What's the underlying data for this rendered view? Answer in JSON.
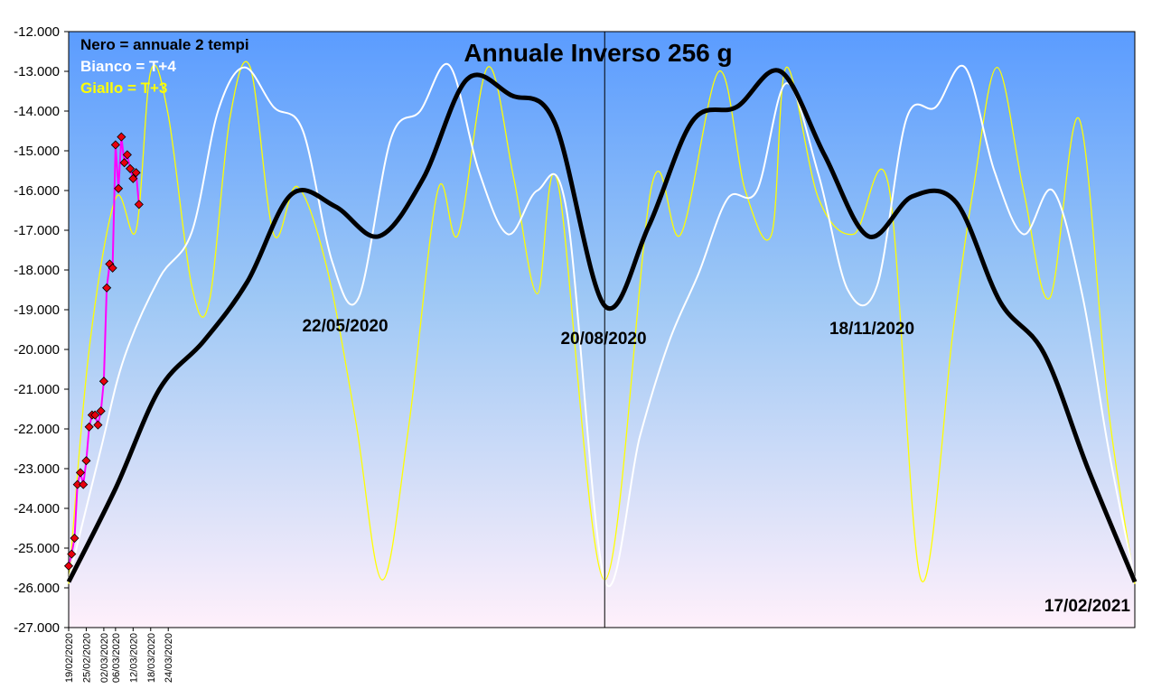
{
  "chart_data": {
    "type": "line",
    "title": "Annuale Inverso 256 g",
    "xlabel": "",
    "ylabel": "",
    "ylim": [
      -27000,
      -12000
    ],
    "yticks": [
      -12000,
      -13000,
      -14000,
      -15000,
      -16000,
      -17000,
      -18000,
      -19000,
      -20000,
      -21000,
      -22000,
      -23000,
      -24000,
      -25000,
      -26000,
      -27000
    ],
    "ytick_labels": [
      "-12.000",
      "-13.000",
      "-14.000",
      "-15.000",
      "-16.000",
      "-17.000",
      "-18.000",
      "-19.000",
      "-20.000",
      "-21.000",
      "-22.000",
      "-23.000",
      "-24.000",
      "-25.000",
      "-26.000",
      "-27.000"
    ],
    "x_range": [
      "19/02/2020",
      "17/02/2021"
    ],
    "xtick_labels": [
      "19/02/2020",
      "25/02/2020",
      "02/03/2020",
      "06/03/2020",
      "12/03/2020",
      "18/03/2020",
      "24/03/2020"
    ],
    "xticks_dates": [
      "2020-02-19",
      "2020-02-25",
      "2020-03-02",
      "2020-03-06",
      "2020-03-12",
      "2020-03-18",
      "2020-03-24"
    ],
    "vertical_line_date": "2020-08-20",
    "legend": [
      {
        "text": "Nero = annuale 2 tempi",
        "color": "#000000"
      },
      {
        "text": "Bianco = T+4",
        "color": "#ffffff"
      },
      {
        "text": "Giallo = T+3",
        "color": "#ffff00"
      }
    ],
    "annotations": [
      {
        "text": "22/05/2020",
        "date": "2020-05-22"
      },
      {
        "text": "20/08/2020",
        "date": "2020-08-20"
      },
      {
        "text": "18/11/2020",
        "date": "2020-11-18"
      },
      {
        "text": "17/02/2021",
        "date": "2021-02-17"
      }
    ],
    "background_gradient": {
      "top": "#5b9cff",
      "middle": "#9ec8f5",
      "bottom": "#fff0fb"
    },
    "series": [
      {
        "name": "Nero = annuale 2 tempi",
        "color": "#000000",
        "points": [
          [
            "2020-02-19",
            -25850
          ],
          [
            "2020-03-06",
            -23500
          ],
          [
            "2020-03-21",
            -21000
          ],
          [
            "2020-04-05",
            -19800
          ],
          [
            "2020-04-20",
            -18300
          ],
          [
            "2020-05-05",
            -16100
          ],
          [
            "2020-05-20",
            -16400
          ],
          [
            "2020-06-04",
            -17150
          ],
          [
            "2020-06-19",
            -15700
          ],
          [
            "2020-07-04",
            -13200
          ],
          [
            "2020-07-19",
            -13600
          ],
          [
            "2020-08-03",
            -14300
          ],
          [
            "2020-08-20",
            -18900
          ],
          [
            "2020-09-04",
            -16900
          ],
          [
            "2020-09-19",
            -14250
          ],
          [
            "2020-10-04",
            -13900
          ],
          [
            "2020-10-19",
            -13000
          ],
          [
            "2020-11-03",
            -15100
          ],
          [
            "2020-11-18",
            -17150
          ],
          [
            "2020-12-03",
            -16150
          ],
          [
            "2020-12-18",
            -16300
          ],
          [
            "2021-01-02",
            -18800
          ],
          [
            "2021-01-17",
            -20100
          ],
          [
            "2021-02-01",
            -23000
          ],
          [
            "2021-02-17",
            -25850
          ]
        ]
      },
      {
        "name": "Bianco = T+4",
        "color": "#ffffff",
        "points": [
          [
            "2020-02-19",
            -25800
          ],
          [
            "2020-03-01",
            -22500
          ],
          [
            "2020-03-09",
            -20200
          ],
          [
            "2020-03-21",
            -18200
          ],
          [
            "2020-04-01",
            -17050
          ],
          [
            "2020-04-10",
            -14000
          ],
          [
            "2020-04-19",
            -12900
          ],
          [
            "2020-04-29",
            -13900
          ],
          [
            "2020-05-09",
            -14500
          ],
          [
            "2020-05-19",
            -17800
          ],
          [
            "2020-05-28",
            -18700
          ],
          [
            "2020-06-08",
            -14700
          ],
          [
            "2020-06-18",
            -14000
          ],
          [
            "2020-06-28",
            -12850
          ],
          [
            "2020-07-08",
            -15500
          ],
          [
            "2020-07-18",
            -17100
          ],
          [
            "2020-07-28",
            -16000
          ],
          [
            "2020-08-07",
            -16500
          ],
          [
            "2020-08-20",
            -25800
          ],
          [
            "2020-09-01",
            -22200
          ],
          [
            "2020-09-11",
            -19800
          ],
          [
            "2020-09-21",
            -18100
          ],
          [
            "2020-10-01",
            -16200
          ],
          [
            "2020-10-11",
            -16000
          ],
          [
            "2020-10-21",
            -13300
          ],
          [
            "2020-11-01",
            -15600
          ],
          [
            "2020-11-11",
            -18500
          ],
          [
            "2020-11-21",
            -18400
          ],
          [
            "2020-12-01",
            -14200
          ],
          [
            "2020-12-11",
            -13900
          ],
          [
            "2020-12-21",
            -12900
          ],
          [
            "2020-12-31",
            -15500
          ],
          [
            "2021-01-10",
            -17100
          ],
          [
            "2021-01-20",
            -16000
          ],
          [
            "2021-01-30",
            -18600
          ],
          [
            "2021-02-08",
            -22500
          ],
          [
            "2021-02-17",
            -25800
          ]
        ]
      },
      {
        "name": "Giallo = T+3",
        "color": "#ffff00",
        "points": [
          [
            "2020-02-19",
            -25900
          ],
          [
            "2020-02-26",
            -20000
          ],
          [
            "2020-03-06",
            -16200
          ],
          [
            "2020-03-13",
            -17000
          ],
          [
            "2020-03-18",
            -13000
          ],
          [
            "2020-03-24",
            -14100
          ],
          [
            "2020-04-01",
            -18400
          ],
          [
            "2020-04-07",
            -18800
          ],
          [
            "2020-04-14",
            -14200
          ],
          [
            "2020-04-21",
            -12900
          ],
          [
            "2020-04-29",
            -17100
          ],
          [
            "2020-05-07",
            -15900
          ],
          [
            "2020-05-17",
            -17900
          ],
          [
            "2020-05-27",
            -21800
          ],
          [
            "2020-06-05",
            -25800
          ],
          [
            "2020-06-14",
            -22000
          ],
          [
            "2020-06-24",
            -16000
          ],
          [
            "2020-07-01",
            -17100
          ],
          [
            "2020-07-11",
            -12900
          ],
          [
            "2020-07-20",
            -15700
          ],
          [
            "2020-07-28",
            -18600
          ],
          [
            "2020-08-04",
            -15800
          ],
          [
            "2020-08-20",
            -25800
          ],
          [
            "2020-09-05",
            -15900
          ],
          [
            "2020-09-15",
            -17100
          ],
          [
            "2020-09-28",
            -13000
          ],
          [
            "2020-10-07",
            -16000
          ],
          [
            "2020-10-16",
            -17100
          ],
          [
            "2020-10-21",
            -12900
          ],
          [
            "2020-11-01",
            -16200
          ],
          [
            "2020-11-13",
            -17100
          ],
          [
            "2020-11-25",
            -15900
          ],
          [
            "2020-12-06",
            -25800
          ],
          [
            "2020-12-17",
            -19500
          ],
          [
            "2020-12-24",
            -15900
          ],
          [
            "2021-01-01",
            -12900
          ],
          [
            "2021-01-10",
            -16000
          ],
          [
            "2021-01-19",
            -18700
          ],
          [
            "2021-01-29",
            -14200
          ],
          [
            "2021-02-08",
            -21500
          ],
          [
            "2021-02-17",
            -25900
          ]
        ]
      },
      {
        "name": "",
        "color": "#ff00ff",
        "marker_color": "#e8000c",
        "points": [
          [
            "2020-02-19",
            -25450
          ],
          [
            "2020-02-20",
            -25150
          ],
          [
            "2020-02-21",
            -24750
          ],
          [
            "2020-02-22",
            -23400
          ],
          [
            "2020-02-23",
            -23100
          ],
          [
            "2020-02-24",
            -23400
          ],
          [
            "2020-02-25",
            -22800
          ],
          [
            "2020-02-26",
            -21950
          ],
          [
            "2020-02-27",
            -21650
          ],
          [
            "2020-02-28",
            -21650
          ],
          [
            "2020-02-29",
            -21900
          ],
          [
            "2020-03-01",
            -21550
          ],
          [
            "2020-03-02",
            -20800
          ],
          [
            "2020-03-03",
            -18450
          ],
          [
            "2020-03-04",
            -17850
          ],
          [
            "2020-03-05",
            -17950
          ],
          [
            "2020-03-06",
            -14850
          ],
          [
            "2020-03-07",
            -15950
          ],
          [
            "2020-03-08",
            -14650
          ],
          [
            "2020-03-09",
            -15300
          ],
          [
            "2020-03-10",
            -15100
          ],
          [
            "2020-03-11",
            -15450
          ],
          [
            "2020-03-12",
            -15700
          ],
          [
            "2020-03-13",
            -15550
          ],
          [
            "2020-03-14",
            -16350
          ]
        ]
      }
    ]
  }
}
